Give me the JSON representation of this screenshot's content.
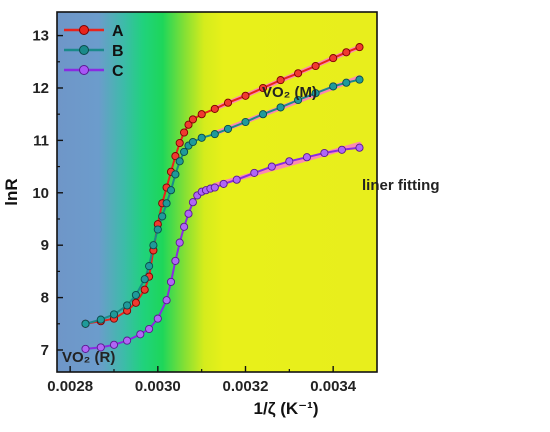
{
  "chart_data": {
    "type": "line",
    "xlabel": "1/ζ (K⁻¹)",
    "ylabel": "lnR",
    "xlim": [
      0.00277,
      0.0035
    ],
    "ylim": [
      6.58,
      13.45
    ],
    "x_ticks": [
      "0.0028",
      "0.0030",
      "0.0032",
      "0.0034"
    ],
    "x_tick_values": [
      0.0028,
      0.003,
      0.0032,
      0.0034
    ],
    "y_ticks": [
      "7",
      "8",
      "9",
      "10",
      "11",
      "12",
      "13"
    ],
    "y_tick_values": [
      7,
      8,
      9,
      10,
      11,
      12,
      13
    ],
    "legend_placement": "top-left",
    "grid": false,
    "background": "gradient: blue (low x) through green to yellow (high x)",
    "series": [
      {
        "name": "A",
        "color": "#e8231c",
        "x": [
          0.002835,
          0.00287,
          0.0029,
          0.00293,
          0.00295,
          0.00297,
          0.00298,
          0.00299,
          0.003,
          0.00301,
          0.00302,
          0.00303,
          0.00304,
          0.00305,
          0.00306,
          0.00307,
          0.00308,
          0.0031,
          0.00313,
          0.00316,
          0.0032,
          0.00324,
          0.00328,
          0.00332,
          0.00336,
          0.0034,
          0.00343,
          0.00346
        ],
        "y": [
          7.5,
          7.55,
          7.6,
          7.75,
          7.9,
          8.15,
          8.4,
          8.9,
          9.4,
          9.8,
          10.1,
          10.4,
          10.7,
          10.95,
          11.15,
          11.3,
          11.4,
          11.5,
          11.6,
          11.72,
          11.85,
          12.0,
          12.15,
          12.28,
          12.42,
          12.57,
          12.68,
          12.78
        ]
      },
      {
        "name": "B",
        "color": "#1a8a8a",
        "x": [
          0.002835,
          0.00287,
          0.0029,
          0.00293,
          0.00295,
          0.00297,
          0.00298,
          0.00299,
          0.003,
          0.00301,
          0.00302,
          0.00303,
          0.00304,
          0.00305,
          0.00306,
          0.00307,
          0.00308,
          0.0031,
          0.00313,
          0.00316,
          0.0032,
          0.00324,
          0.00328,
          0.00332,
          0.00336,
          0.0034,
          0.00343,
          0.00346
        ],
        "y": [
          7.5,
          7.58,
          7.68,
          7.85,
          8.05,
          8.35,
          8.6,
          9.0,
          9.3,
          9.55,
          9.8,
          10.05,
          10.35,
          10.6,
          10.78,
          10.9,
          10.97,
          11.05,
          11.12,
          11.22,
          11.35,
          11.5,
          11.63,
          11.77,
          11.9,
          12.03,
          12.1,
          12.16
        ]
      },
      {
        "name": "C",
        "color": "#8a2be2",
        "x": [
          0.002835,
          0.00287,
          0.0029,
          0.00293,
          0.00296,
          0.00298,
          0.003,
          0.00302,
          0.00303,
          0.00304,
          0.00305,
          0.00306,
          0.00307,
          0.00308,
          0.00309,
          0.0031,
          0.00311,
          0.00312,
          0.00313,
          0.00315,
          0.00318,
          0.00322,
          0.00326,
          0.0033,
          0.00334,
          0.00338,
          0.00342,
          0.00346
        ],
        "y": [
          7.02,
          7.05,
          7.1,
          7.18,
          7.3,
          7.4,
          7.6,
          7.95,
          8.3,
          8.7,
          9.05,
          9.35,
          9.6,
          9.82,
          9.95,
          10.02,
          10.05,
          10.08,
          10.1,
          10.17,
          10.25,
          10.38,
          10.5,
          10.6,
          10.68,
          10.76,
          10.82,
          10.86
        ]
      }
    ],
    "annotations": {
      "vo2_m": "VO₂ (M)",
      "vo2_r": "VO₂ (R)",
      "liner_fitting": "liner fitting"
    },
    "fit_color": "#ff80c0"
  }
}
